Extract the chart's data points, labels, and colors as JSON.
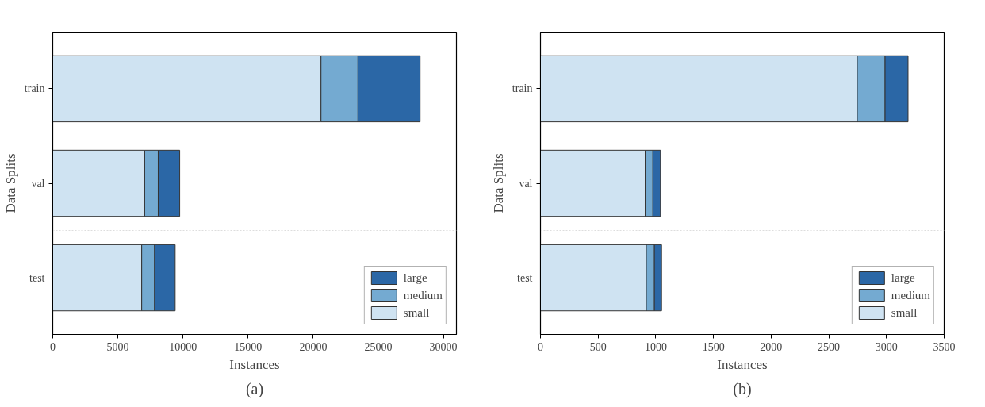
{
  "chart_data": [
    {
      "type": "bar",
      "orientation": "horizontal",
      "stacked": true,
      "categories": [
        "train",
        "val",
        "test"
      ],
      "xlabel": "Instances",
      "ylabel": "Data Splits",
      "annotations": [
        "(a)"
      ],
      "xlim": [
        0,
        31000
      ],
      "xticks": [
        0,
        5000,
        10000,
        15000,
        20000,
        25000,
        30000
      ],
      "grid": "y",
      "legend": "bottom right",
      "series": [
        {
          "name": "small",
          "color": "#cfe3f2",
          "values": [
            20600,
            7060,
            6830
          ]
        },
        {
          "name": "medium",
          "color": "#74aad1",
          "values": [
            2840,
            1040,
            990
          ]
        },
        {
          "name": "large",
          "color": "#2b67a6",
          "values": [
            4770,
            1650,
            1580
          ]
        }
      ]
    },
    {
      "type": "bar",
      "orientation": "horizontal",
      "stacked": true,
      "categories": [
        "train",
        "val",
        "test"
      ],
      "xlabel": "Instances",
      "ylabel": "Data Splits",
      "annotations": [
        "(b)"
      ],
      "xlim": [
        0,
        3500
      ],
      "xticks": [
        0,
        500,
        1000,
        1500,
        2000,
        2500,
        3000,
        3500
      ],
      "grid": "y",
      "legend": "bottom right",
      "series": [
        {
          "name": "small",
          "color": "#cfe3f2",
          "values": [
            2747,
            908,
            918
          ]
        },
        {
          "name": "medium",
          "color": "#74aad1",
          "values": [
            241,
            67,
            70
          ]
        },
        {
          "name": "large",
          "color": "#2b67a6",
          "values": [
            199,
            65,
            62
          ]
        }
      ]
    }
  ]
}
